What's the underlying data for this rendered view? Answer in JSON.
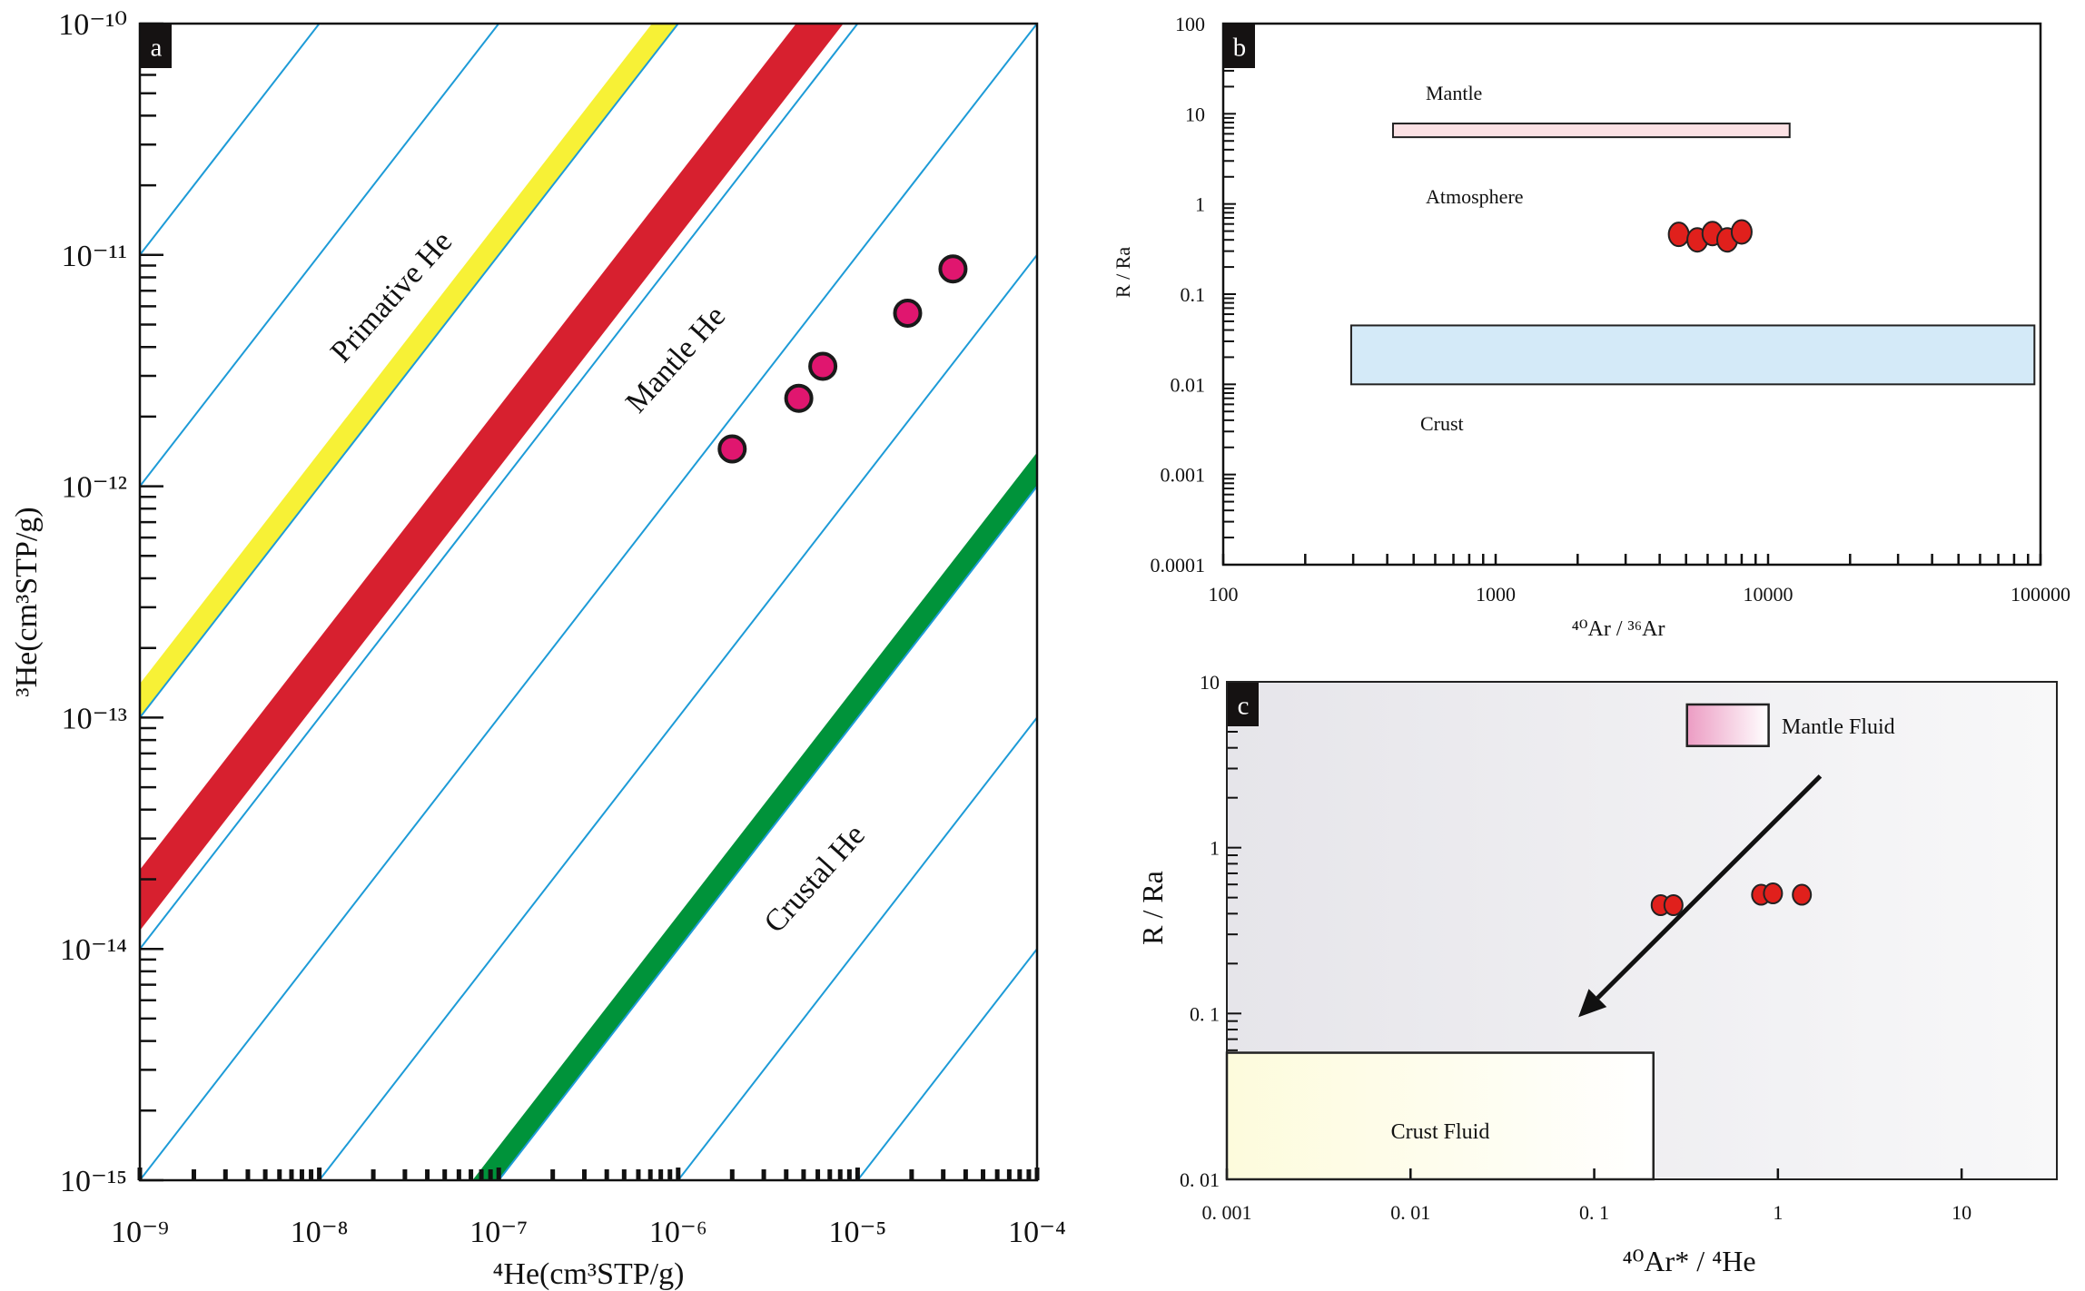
{
  "chart_data": [
    {
      "panel": "a",
      "type": "scatter",
      "x_scale": "log",
      "y_scale": "log",
      "xlim": [
        1e-09,
        0.0001
      ],
      "ylim": [
        1e-15,
        1e-10
      ],
      "xlabel": "⁴He(cm³STP/g)",
      "ylabel": "³He(cm³STP/g)",
      "x_ticks": [
        1e-09,
        1e-08,
        1e-07,
        1e-06,
        1e-05,
        0.0001
      ],
      "x_tick_labels": [
        "10⁻⁹",
        "10⁻⁸",
        "10⁻⁷",
        "10⁻⁶",
        "10⁻⁵",
        "10⁻⁴"
      ],
      "y_ticks": [
        1e-10,
        1e-11,
        1e-12,
        1e-13,
        1e-14,
        1e-15
      ],
      "y_tick_labels": [
        "10⁻¹⁰",
        "10⁻¹¹",
        "10⁻¹²",
        "10⁻¹³",
        "10⁻¹⁴",
        "10⁻¹⁵"
      ],
      "isoline_ratios": [
        0.01,
        0.001,
        0.0001,
        1e-05,
        1e-06,
        1e-07,
        1e-08,
        1e-09,
        1e-10
      ],
      "isoline_color": "#1d9bd7",
      "bands": [
        {
          "ratio_range": [
            0.0001,
            0.00014
          ],
          "color": "#f7f136"
        },
        {
          "ratio_range": [
            1.2e-05,
            2.2e-05
          ],
          "color": "#d7202f"
        },
        {
          "ratio_range": [
            1e-08,
            1.4e-08
          ],
          "color": "#00933a"
        }
      ],
      "annotations": [
        "Primative He",
        "Mantle He",
        "Crustal He"
      ],
      "points": {
        "x": [
          2e-06,
          4.7e-06,
          6.4e-06,
          1.9e-05,
          3.4e-05
        ],
        "y": [
          1.45e-12,
          2.4e-12,
          3.3e-12,
          5.6e-12,
          8.7e-12
        ]
      },
      "point_color": "#e0166f"
    },
    {
      "panel": "b",
      "type": "scatter",
      "x_scale": "log",
      "y_scale": "log",
      "xlim": [
        100,
        100000
      ],
      "ylim": [
        0.0001,
        100
      ],
      "xlabel": "⁴⁰Ar / ³⁶Ar",
      "ylabel": "R / Ra",
      "x_ticks": [
        100,
        1000,
        10000,
        100000
      ],
      "x_tick_labels": [
        "100",
        "1000",
        "10000",
        "100000"
      ],
      "y_ticks": [
        100,
        10,
        1,
        0.1,
        0.01,
        0.001,
        0.0001
      ],
      "y_tick_labels": [
        "100",
        "10",
        "1",
        "0.1",
        "0.01",
        "0.001",
        "0.0001"
      ],
      "regions": [
        {
          "label": "Mantle",
          "x_range": [
            420,
            12000
          ],
          "y_range": [
            5.5,
            7.8
          ],
          "color": "#fbe1e4"
        },
        {
          "label": "Crust",
          "x_range": [
            295,
            95000
          ],
          "y_range": [
            0.01,
            0.045
          ],
          "color": "#d4eaf8"
        }
      ],
      "annotations": [
        "Mantle",
        "Atmosphere",
        "Crust"
      ],
      "points": {
        "x": [
          4700,
          5500,
          6250,
          7080,
          8000
        ],
        "y": [
          0.46,
          0.4,
          0.47,
          0.4,
          0.49
        ]
      },
      "point_color": "#e0201c"
    },
    {
      "panel": "c",
      "type": "scatter",
      "x_scale": "log",
      "y_scale": "log",
      "xlim": [
        0.001,
        33
      ],
      "ylim": [
        0.01,
        10
      ],
      "xlabel": "⁴⁰Ar* / ⁴He",
      "ylabel": "R / Ra",
      "x_ticks": [
        0.001,
        0.01,
        0.1,
        1,
        10
      ],
      "x_tick_labels": [
        "0. 001",
        "0. 01",
        "0. 1",
        "1",
        "10"
      ],
      "y_ticks": [
        10,
        1,
        0.1,
        0.01
      ],
      "y_tick_labels": [
        "10",
        "1",
        "0. 1",
        "0. 01"
      ],
      "regions": [
        {
          "label": "Mantle Fluid",
          "x_range": [
            0.32,
            0.89
          ],
          "y_range": [
            4.1,
            7.3
          ],
          "color": "#ec9cc3"
        },
        {
          "label": "Crust Fluid",
          "x_range": [
            0.001,
            0.21
          ],
          "y_range": [
            0.01,
            0.058
          ],
          "color": "#fdfbe0"
        }
      ],
      "arrow": {
        "from": [
          1.7,
          2.7
        ],
        "to": [
          0.082,
          0.095
        ]
      },
      "points": {
        "x": [
          0.23,
          0.27,
          0.81,
          0.94,
          1.35
        ],
        "y": [
          0.45,
          0.45,
          0.52,
          0.53,
          0.52
        ]
      },
      "point_color": "#e0201c"
    }
  ]
}
